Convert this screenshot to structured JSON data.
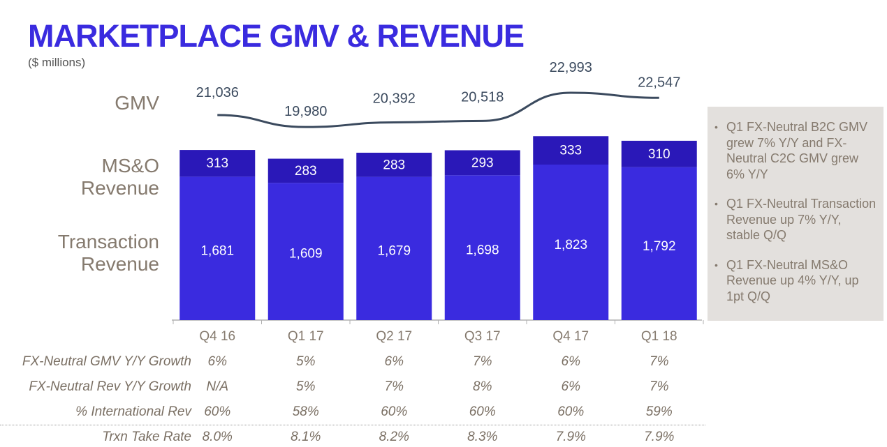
{
  "title": "MARKETPLACE GMV & REVENUE",
  "subtitle": "($ millions)",
  "row_labels": {
    "gmv": "GMV",
    "mso_line1": "MS&O",
    "mso_line2": "Revenue",
    "trx_line1": "Transaction",
    "trx_line2": "Revenue"
  },
  "chart_data": {
    "type": "bar",
    "stacked": true,
    "categories": [
      "Q4 16",
      "Q1 17",
      "Q2 17",
      "Q3 17",
      "Q4 17",
      "Q1 18"
    ],
    "series": [
      {
        "name": "Transaction Revenue",
        "values": [
          1681,
          1609,
          1679,
          1698,
          1823,
          1792
        ],
        "color": "#3a2bdf"
      },
      {
        "name": "MS&O Revenue",
        "values": [
          313,
          283,
          283,
          293,
          333,
          310
        ],
        "color": "#2a18b8"
      }
    ],
    "line": {
      "name": "GMV",
      "values": [
        21036,
        19980,
        20392,
        20518,
        22993,
        22547
      ],
      "color": "#3b4a5e"
    },
    "ylim": [
      0,
      2150
    ]
  },
  "bullets": [
    "Q1 FX-Neutral B2C GMV grew 7% Y/Y and FX-Neutral C2C GMV grew 6% Y/Y",
    "Q1 FX-Neutral Transaction Revenue up 7% Y/Y, stable Q/Q",
    "Q1 FX-Neutral MS&O Revenue up 4% Y/Y, up 1pt Q/Q"
  ],
  "metrics": [
    {
      "label": "FX-Neutral GMV Y/Y Growth",
      "values": [
        "6%",
        "5%",
        "6%",
        "7%",
        "6%",
        "7%"
      ]
    },
    {
      "label": "FX-Neutral Rev Y/Y Growth",
      "values": [
        "N/A",
        "5%",
        "7%",
        "8%",
        "6%",
        "7%"
      ]
    },
    {
      "label": "% International Rev",
      "values": [
        "60%",
        "58%",
        "60%",
        "60%",
        "60%",
        "59%"
      ]
    },
    {
      "label": "Trxn Take Rate",
      "values": [
        "8.0%",
        "8.1%",
        "8.2%",
        "8.3%",
        "7.9%",
        "7.9%"
      ]
    }
  ],
  "colors": {
    "accent": "#3a2bdf",
    "mso_bar": "#2a18b8",
    "gmv_line": "#3b4a5e",
    "label_text": "#857a6e",
    "panel_bg": "#e3e0dd"
  }
}
